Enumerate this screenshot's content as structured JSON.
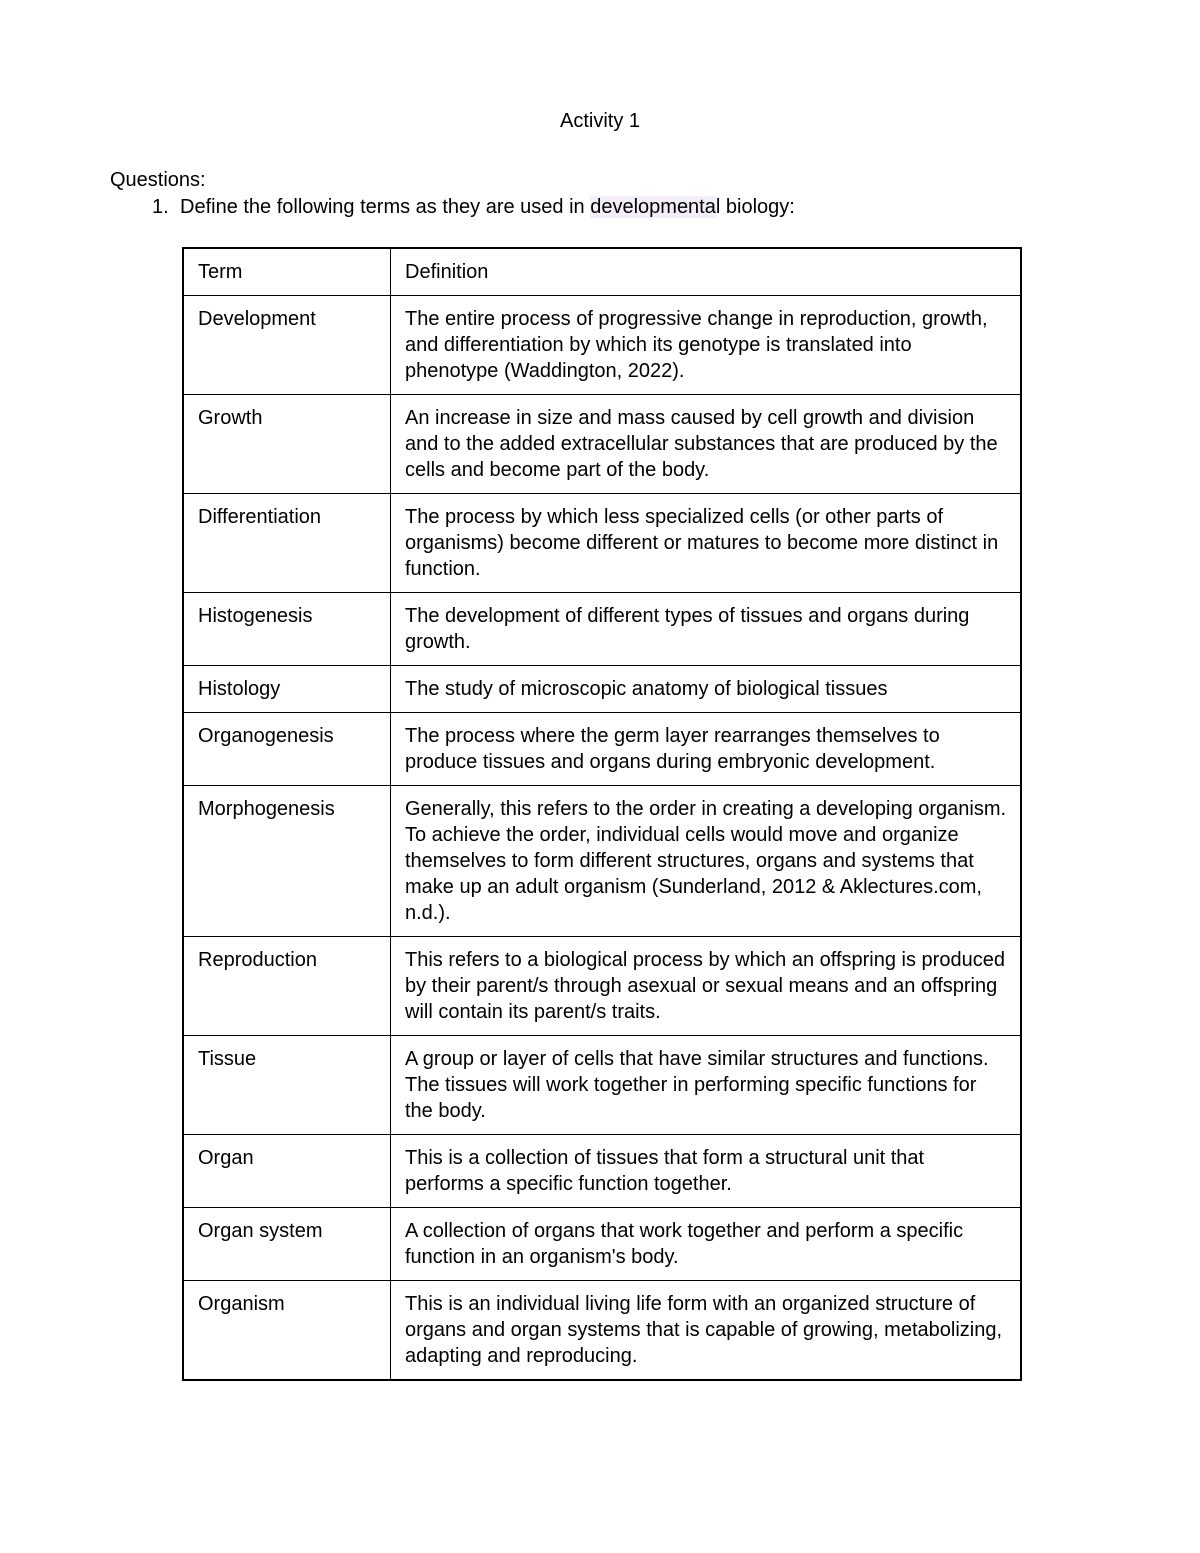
{
  "title": "Activity 1",
  "questions_label": "Questions:",
  "q1": {
    "num": "1.",
    "before": "Define the following terms as they are used in ",
    "hl": "developmenta",
    "after": "l biology:"
  },
  "header": {
    "term": "Term",
    "def": "Definition"
  },
  "rows": [
    {
      "term": "Development",
      "def": "The entire process of progressive change in reproduction, growth, and differentiation by which its genotype is translated into phenotype (Waddington, 2022)."
    },
    {
      "term": "Growth",
      "def": "An increase in size and mass caused by cell growth and division and to the added extracellular substances that are produced by the cells and become part of the body."
    },
    {
      "term": "Differentiation",
      "def": "The process by which less specialized cells (or other parts of organisms) become different or matures to become more distinct in function."
    },
    {
      "term": "Histogenesis",
      "def": "The development of different types of tissues and organs during growth."
    },
    {
      "term": "Histology",
      "def": "The study of microscopic anatomy of biological tissues"
    },
    {
      "term": "Organogenesis",
      "def": "The process where the germ layer rearranges themselves to produce tissues and organs during embryonic development."
    },
    {
      "term": "Morphogenesis",
      "def": "Generally, this refers to the order in creating a developing organism. To achieve the order, individual cells would move and organize themselves to form different structures, organs and systems that make up an adult organism (Sunderland, 2012 & Aklectures.com, n.d.)."
    },
    {
      "term": "Reproduction",
      "def": "This refers to a biological process by which an offspring is produced by their parent/s through asexual or sexual means and an offspring will contain its parent/s traits."
    },
    {
      "term": "Tissue",
      "def": "A group or layer of cells that have similar structures and functions. The tissues will work together in performing specific functions for the body."
    },
    {
      "term": "Organ",
      "def": "This is a collection of tissues that form a structural unit that performs a specific function together."
    },
    {
      "term": "Organ system",
      "def": "A collection of organs that work together and perform a specific function in an organism's body."
    },
    {
      "term": "Organism",
      "def": "This is an individual living life form with an organized structure of organs and organ systems that is capable of growing, metabolizing, adapting and reproducing."
    }
  ]
}
